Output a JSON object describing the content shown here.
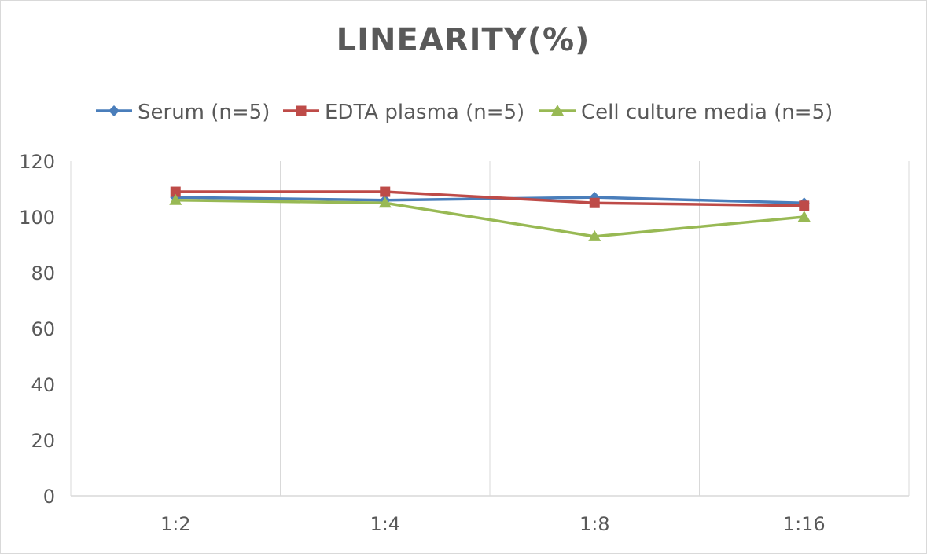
{
  "chart_data": {
    "type": "line",
    "title": "LINEARITY(%)",
    "categories": [
      "1:2",
      "1:4",
      "1:8",
      "1:16"
    ],
    "series": [
      {
        "name": "Serum (n=5)",
        "values": [
          107,
          106,
          107,
          105
        ],
        "color": "#4a7ebb",
        "marker": "diamond"
      },
      {
        "name": "EDTA plasma (n=5)",
        "values": [
          109,
          109,
          105,
          104
        ],
        "color": "#be4b48",
        "marker": "square"
      },
      {
        "name": "Cell culture media (n=5)",
        "values": [
          106,
          105,
          93,
          100
        ],
        "color": "#98b954",
        "marker": "triangle"
      }
    ],
    "ylim": [
      0,
      120
    ],
    "yticks": [
      0,
      20,
      40,
      60,
      80,
      100,
      120
    ],
    "xlabel": "",
    "ylabel": "",
    "grid": "vertical",
    "legend": "top"
  }
}
